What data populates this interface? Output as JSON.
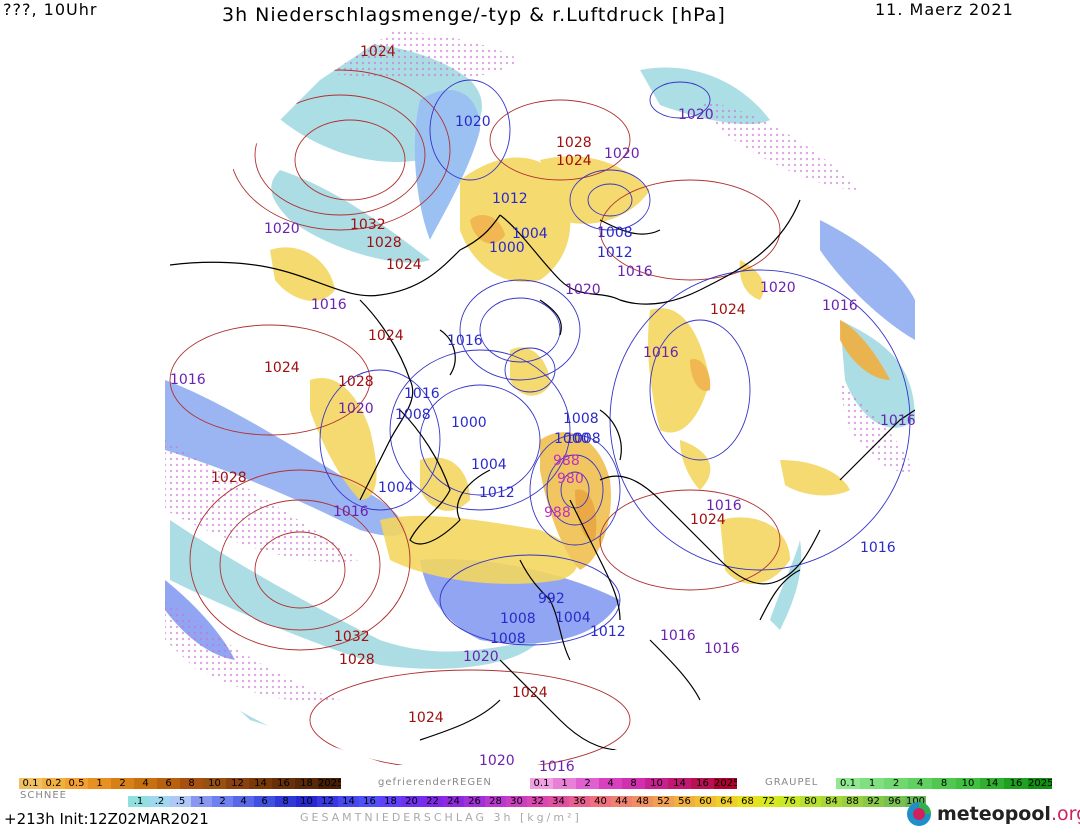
{
  "header": {
    "left": "???, 10Uhr",
    "title": "3h Niederschlagsmenge/-typ & r.Luftdruck [hPa]",
    "date": "11. Maerz 2021"
  },
  "pressure_labels": {
    "red": [
      "1024",
      "1028",
      "1024",
      "1032",
      "1028",
      "1024",
      "1024",
      "1024",
      "1028",
      "1028",
      "1024",
      "1024",
      "1032",
      "1028",
      "1024",
      "1024"
    ],
    "blue": [
      "1020",
      "1012",
      "1004",
      "1000",
      "1008",
      "1012",
      "1016",
      "1008",
      "1000",
      "1004",
      "1012",
      "1004",
      "1016",
      "1008",
      "1000",
      "1008",
      "1004",
      "1008",
      "1012",
      "992",
      "1016",
      "1008"
    ],
    "purple": [
      "1020",
      "1020",
      "1016",
      "1016",
      "1020",
      "1016",
      "1020",
      "1016",
      "1016",
      "1016",
      "1020",
      "1016",
      "1020",
      "1016",
      "1020",
      "1016",
      "1016",
      "1020",
      "1016"
    ],
    "magenta": [
      "988",
      "980",
      "988"
    ]
  },
  "legend": {
    "snow_label": "SCHNEE",
    "snow_scale": [
      "0.1",
      "0.2",
      "0.5",
      "1",
      "2",
      "4",
      "6",
      "8",
      "10",
      "12",
      "14",
      "16",
      "18",
      "2025+"
    ],
    "rain_label": "gefrierenderREGEN",
    "rain_scale": [
      "0.1",
      "1",
      "2",
      "4",
      "8",
      "10",
      "14",
      "16",
      "2025+"
    ],
    "graupel_label": "GRAUPEL",
    "graupel_scale": [
      "0.1",
      "1",
      "2",
      "4",
      "8",
      "10",
      "14",
      "16",
      "2025+"
    ],
    "total_scale": [
      ".1",
      ".2",
      ".5",
      "1",
      "2",
      "4",
      "6",
      "8",
      "10",
      "12",
      "14",
      "16",
      "18",
      "20",
      "22",
      "24",
      "26",
      "28",
      "30",
      "32",
      "34",
      "36",
      "40",
      "44",
      "48",
      "52",
      "56",
      "60",
      "64",
      "68",
      "72",
      "76",
      "80",
      "84",
      "88",
      "92",
      "96",
      "100"
    ],
    "total_label": "GESAMTNIEDERSCHLAG 3h [kg/m²]"
  },
  "footer": {
    "run": "+213h  Init:12Z02MAR2021",
    "logo_text": "meteopool",
    "logo_tld": ".org"
  },
  "colors": {
    "snow": [
      "#f0c060",
      "#f2b040",
      "#f4a030",
      "#e89020",
      "#d88018",
      "#c87010",
      "#b86010",
      "#a85010",
      "#985010",
      "#884010",
      "#783808",
      "#683008",
      "#582808",
      "#481e04"
    ],
    "rain": [
      "#f0a0e0",
      "#e880d8",
      "#e060d0",
      "#d840c0",
      "#d030b0",
      "#c82090",
      "#c01870",
      "#b81050",
      "#b00030"
    ],
    "graupel": [
      "#90e890",
      "#80e080",
      "#70d870",
      "#60d060",
      "#50c850",
      "#40c040",
      "#30b030",
      "#20a020",
      "#109010"
    ],
    "total": [
      "#90e0e0",
      "#a0d8f0",
      "#b0c8f8",
      "#8898f0",
      "#7080f0",
      "#5868e8",
      "#4050e0",
      "#3038d8",
      "#2828d0",
      "#3838e0",
      "#4848f0",
      "#5050f8",
      "#6040f8",
      "#7030f0",
      "#8028e8",
      "#9028e0",
      "#a030d8",
      "#b838d0",
      "#c840c0",
      "#d848b0",
      "#e050a0",
      "#e86090",
      "#f07080",
      "#f08070",
      "#f09060",
      "#f0a050",
      "#f0b040",
      "#f0c030",
      "#f0d028",
      "#e8e020",
      "#d8e820",
      "#c8e828",
      "#b8e030",
      "#a8d838",
      "#98d040",
      "#88c848",
      "#78c050",
      "#68b858"
    ]
  }
}
